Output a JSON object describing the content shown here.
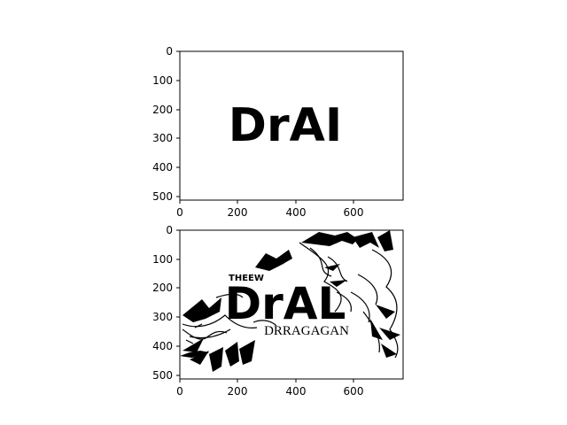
{
  "figure": {
    "background": "#ffffff",
    "panels": [
      {
        "id": "top",
        "image_text": "DrAI",
        "x_ticks": [
          "0",
          "200",
          "400",
          "600"
        ],
        "y_ticks": [
          "0",
          "100",
          "200",
          "300",
          "400",
          "500"
        ]
      },
      {
        "id": "bottom",
        "image_text": "DrAL",
        "small_text_upper": "THEEW",
        "small_text_lower": "DRRAGAGAN",
        "x_ticks": [
          "0",
          "200",
          "400",
          "600"
        ],
        "y_ticks": [
          "0",
          "100",
          "200",
          "300",
          "400",
          "500"
        ]
      }
    ]
  }
}
